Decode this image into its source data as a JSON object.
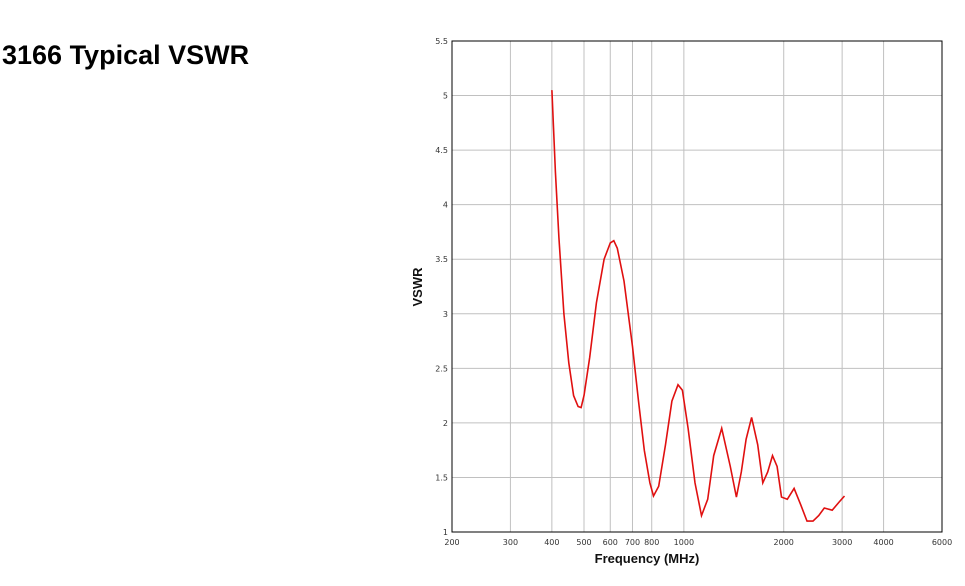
{
  "page": {
    "title": "3166 Typical VSWR"
  },
  "chart_data": {
    "type": "line",
    "title": "",
    "xlabel": "Frequency (MHz)",
    "ylabel": "VSWR",
    "x_scale": "log",
    "xlim": [
      200,
      6000
    ],
    "ylim": [
      1,
      5.5
    ],
    "x_ticks": [
      200,
      300,
      400,
      500,
      600,
      700,
      800,
      1000,
      2000,
      3000,
      4000,
      6000
    ],
    "x_tick_labels": [
      "200",
      "300",
      "400",
      "500",
      "600",
      "700",
      "800",
      "1000",
      "2000",
      "3000",
      "4000",
      "6000"
    ],
    "y_ticks": [
      1,
      1.5,
      2,
      2.5,
      3,
      3.5,
      4,
      4.5,
      5,
      5.5
    ],
    "y_tick_labels": [
      "1",
      "1.5",
      "2",
      "2.5",
      "3",
      "3.5",
      "4",
      "4.5",
      "5",
      "5.5"
    ],
    "grid": true,
    "colors": {
      "line": "#e01010",
      "grid": "#c0c0c0",
      "frame": "#000000"
    },
    "series": [
      {
        "x": [
          400,
          410,
          420,
          435,
          450,
          465,
          480,
          490,
          500,
          520,
          545,
          575,
          600,
          615,
          630,
          660,
          700,
          730,
          760,
          790,
          810,
          840,
          880,
          920,
          960,
          990,
          1030,
          1080,
          1130,
          1180,
          1230,
          1300,
          1380,
          1440,
          1490,
          1540,
          1600,
          1670,
          1730,
          1790,
          1850,
          1910,
          1970,
          2050,
          2150,
          2250,
          2350,
          2450,
          2550,
          2650,
          2800,
          2950,
          3050
        ],
        "y": [
          5.05,
          4.3,
          3.7,
          3.0,
          2.55,
          2.25,
          2.15,
          2.14,
          2.25,
          2.6,
          3.1,
          3.5,
          3.65,
          3.67,
          3.6,
          3.3,
          2.7,
          2.2,
          1.75,
          1.45,
          1.33,
          1.42,
          1.8,
          2.2,
          2.35,
          2.3,
          1.95,
          1.45,
          1.15,
          1.3,
          1.7,
          1.95,
          1.6,
          1.32,
          1.55,
          1.85,
          2.05,
          1.8,
          1.45,
          1.55,
          1.7,
          1.6,
          1.32,
          1.3,
          1.4,
          1.25,
          1.1,
          1.1,
          1.15,
          1.22,
          1.2,
          1.28,
          1.33
        ]
      }
    ]
  }
}
